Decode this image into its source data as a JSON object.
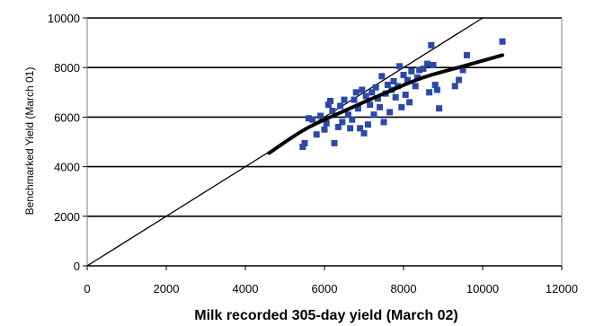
{
  "chart_data": {
    "type": "scatter",
    "title": "",
    "xlabel": "Milk recorded 305-day yield (March 02)",
    "ylabel": "Benchmarked Yield (March 01)",
    "xlim": [
      0,
      12000
    ],
    "ylim": [
      0,
      10000
    ],
    "x_ticks": [
      "0",
      "2000",
      "4000",
      "6000",
      "8000",
      "10000",
      "12000"
    ],
    "y_ticks": [
      "0",
      "2000",
      "4000",
      "6000",
      "8000",
      "10000"
    ],
    "grid": "horizontal",
    "legend": "none",
    "colors": {
      "points": "#2b4aa8",
      "reference_line": "#000000",
      "trend_line": "#000000",
      "grid": "#000000"
    },
    "series": [
      {
        "kind": "points",
        "points": [
          [
            5450,
            4800
          ],
          [
            5500,
            4950
          ],
          [
            5600,
            5950
          ],
          [
            5700,
            5900
          ],
          [
            5800,
            5300
          ],
          [
            5900,
            6050
          ],
          [
            6000,
            5500
          ],
          [
            6050,
            5750
          ],
          [
            6100,
            6500
          ],
          [
            6150,
            6650
          ],
          [
            6200,
            6250
          ],
          [
            6250,
            4950
          ],
          [
            6350,
            5600
          ],
          [
            6400,
            6450
          ],
          [
            6450,
            5800
          ],
          [
            6500,
            6700
          ],
          [
            6600,
            6100
          ],
          [
            6650,
            5550
          ],
          [
            6700,
            5900
          ],
          [
            6750,
            6700
          ],
          [
            6800,
            7000
          ],
          [
            6850,
            6350
          ],
          [
            6900,
            5550
          ],
          [
            6950,
            7100
          ],
          [
            7000,
            5350
          ],
          [
            7050,
            6850
          ],
          [
            7100,
            5700
          ],
          [
            7150,
            6500
          ],
          [
            7200,
            7000
          ],
          [
            7250,
            6100
          ],
          [
            7300,
            7200
          ],
          [
            7350,
            6750
          ],
          [
            7400,
            6400
          ],
          [
            7450,
            7650
          ],
          [
            7500,
            5800
          ],
          [
            7550,
            6950
          ],
          [
            7600,
            7300
          ],
          [
            7650,
            6200
          ],
          [
            7700,
            7100
          ],
          [
            7750,
            7450
          ],
          [
            7800,
            6800
          ],
          [
            7850,
            7250
          ],
          [
            7900,
            8050
          ],
          [
            7950,
            6400
          ],
          [
            8000,
            7700
          ],
          [
            8050,
            6900
          ],
          [
            8100,
            7500
          ],
          [
            8150,
            6600
          ],
          [
            8200,
            7850
          ],
          [
            8300,
            7250
          ],
          [
            8350,
            7600
          ],
          [
            8400,
            7900
          ],
          [
            8500,
            7950
          ],
          [
            8600,
            8150
          ],
          [
            8650,
            7000
          ],
          [
            8700,
            8900
          ],
          [
            8750,
            8100
          ],
          [
            8800,
            7300
          ],
          [
            8850,
            7100
          ],
          [
            8900,
            6350
          ],
          [
            9300,
            7250
          ],
          [
            9400,
            7500
          ],
          [
            9500,
            7900
          ],
          [
            9600,
            8500
          ],
          [
            10500,
            9050
          ]
        ]
      },
      {
        "kind": "line",
        "role": "reference",
        "points": [
          [
            0,
            0
          ],
          [
            10000,
            10000
          ]
        ]
      },
      {
        "kind": "line",
        "role": "trend",
        "points": [
          [
            4600,
            4550
          ],
          [
            5500,
            5500
          ],
          [
            6500,
            6250
          ],
          [
            7500,
            6950
          ],
          [
            8500,
            7600
          ],
          [
            9500,
            8050
          ],
          [
            10500,
            8500
          ]
        ]
      }
    ]
  }
}
